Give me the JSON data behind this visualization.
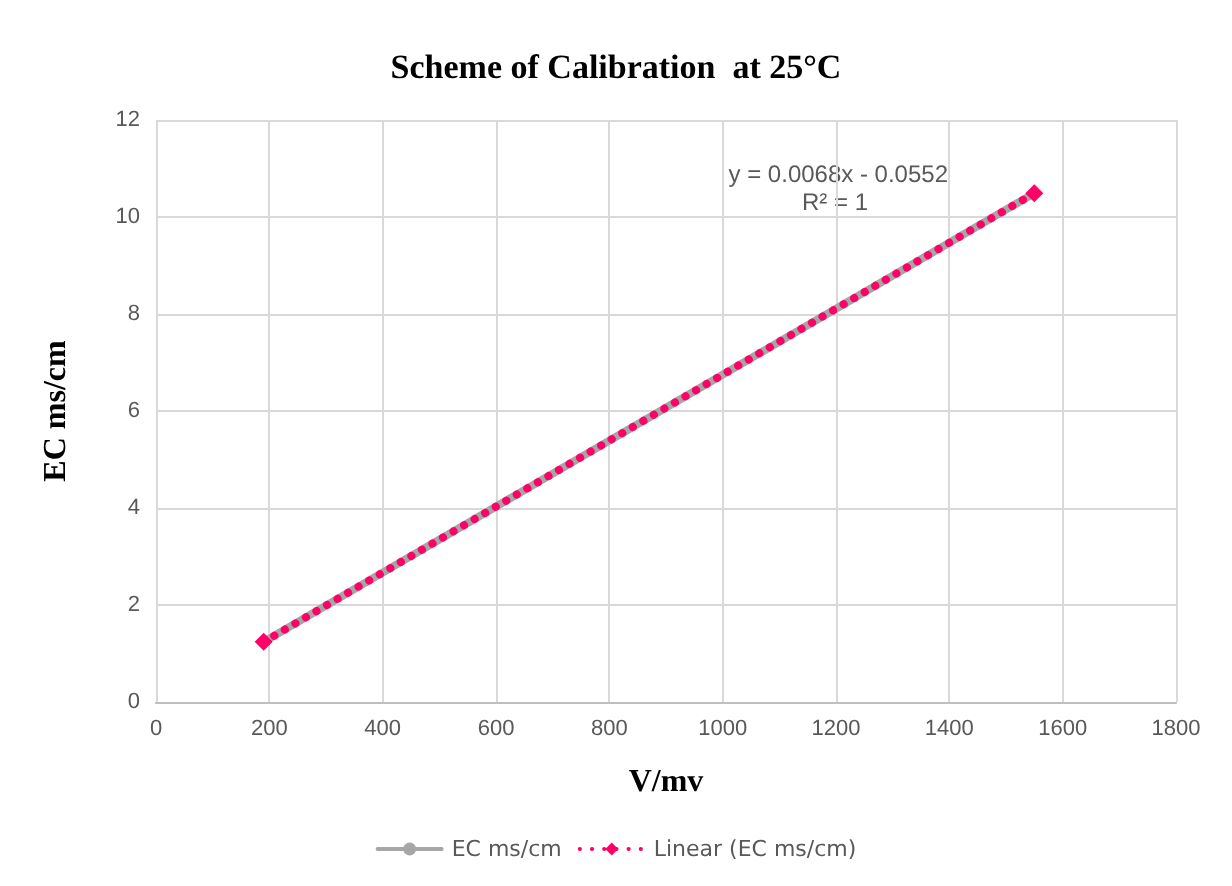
{
  "chart_data": {
    "type": "line",
    "title": "Scheme of Calibration  at 25°C",
    "xlabel": "V/mv",
    "ylabel": "EC ms/cm",
    "annotations": [
      "y = 0.0068x - 0.0552",
      "R² = 1"
    ],
    "series": [
      {
        "name": "EC ms/cm",
        "color": "#a6a6a6",
        "values": [
          1.24,
          10.49
        ],
        "marker": "none",
        "line_style": "solid"
      },
      {
        "name": "Linear (EC ms/cm)",
        "color": "#ff0066",
        "values": [
          1.24,
          10.49
        ],
        "marker": "diamond",
        "line_style": "dotted"
      }
    ],
    "x": [
      190,
      1550
    ],
    "xlim": [
      0,
      1800
    ],
    "xticks": [
      0,
      200,
      400,
      600,
      800,
      1000,
      1200,
      1400,
      1600,
      1800
    ],
    "ylim": [
      0,
      12
    ],
    "yticks": [
      0,
      2,
      4,
      6,
      8,
      10,
      12
    ],
    "grid": true,
    "legend": "bottom"
  }
}
